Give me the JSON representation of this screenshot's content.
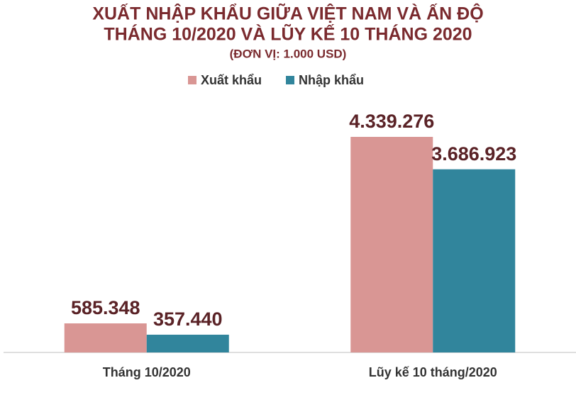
{
  "chart_data": {
    "type": "bar",
    "title": "XUẤT NHẬP KHẨU GIỮA VIỆT NAM VÀ ẤN ĐỘ",
    "subtitle": "THÁNG 10/2020 VÀ LŨY KẾ 10 THÁNG 2020",
    "unit": "(ĐƠN VỊ: 1.000 USD)",
    "categories": [
      "Tháng 10/2020",
      "Lũy kế 10 tháng/2020"
    ],
    "series": [
      {
        "name": "Xuất khẩu",
        "color": "#d99694",
        "values": [
          585348,
          4339276
        ],
        "value_labels": [
          "585.348",
          "4.339.276"
        ]
      },
      {
        "name": "Nhập khẩu",
        "color": "#31859c",
        "values": [
          357440,
          3686923
        ],
        "value_labels": [
          "357.440",
          "3.686.923"
        ]
      }
    ],
    "legend": "top"
  }
}
